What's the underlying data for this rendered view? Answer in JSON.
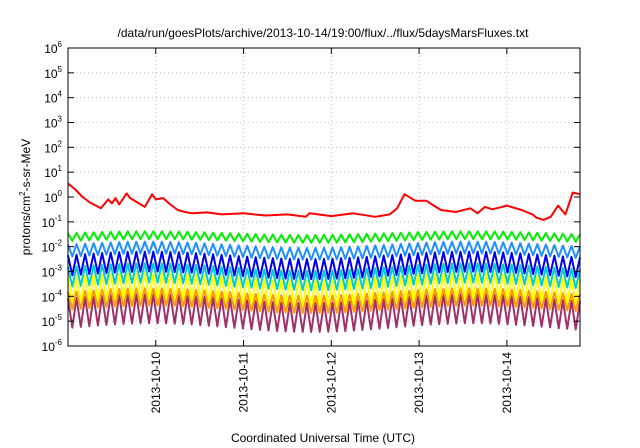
{
  "chart_data": {
    "type": "line",
    "title": "/data/run/goesPlots/archive/2013-10-14/19:00/flux/../flux/5daysMarsFluxes.txt",
    "xlabel": "Coordinated Universal Time (UTC)",
    "ylabel_parts": {
      "before": "protons/cm",
      "sup": "2",
      "after": "-s-sr-MeV"
    },
    "y_scale": "log",
    "ylim": [
      1e-06,
      1000000.0
    ],
    "y_ticks": [
      {
        "value": 1000000.0,
        "base": "10",
        "exp": "6"
      },
      {
        "value": 100000.0,
        "base": "10",
        "exp": "5"
      },
      {
        "value": 10000.0,
        "base": "10",
        "exp": "4"
      },
      {
        "value": 1000.0,
        "base": "10",
        "exp": "3"
      },
      {
        "value": 100.0,
        "base": "10",
        "exp": "2"
      },
      {
        "value": 10.0,
        "base": "10",
        "exp": "1"
      },
      {
        "value": 1.0,
        "base": "10",
        "exp": "0"
      },
      {
        "value": 0.1,
        "base": "10",
        "exp": "-1"
      },
      {
        "value": 0.01,
        "base": "10",
        "exp": "-2"
      },
      {
        "value": 0.001,
        "base": "10",
        "exp": "-3"
      },
      {
        "value": 0.0001,
        "base": "10",
        "exp": "-4"
      },
      {
        "value": 1e-05,
        "base": "10",
        "exp": "-5"
      },
      {
        "value": 1e-06,
        "base": "10",
        "exp": "-6"
      }
    ],
    "xlim": [
      "2013-10-09 00:00",
      "2013-10-14 20:00"
    ],
    "x_ticks": [
      "2013-10-10",
      "2013-10-11",
      "2013-10-12",
      "2013-10-13",
      "2013-10-14"
    ],
    "grid": true,
    "series": [
      {
        "color": "#ff0000",
        "x": [
          "2013-10-09 00:00",
          "2013-10-09 02:00",
          "2013-10-09 04:00",
          "2013-10-09 06:00",
          "2013-10-09 09:00",
          "2013-10-09 11:00",
          "2013-10-09 12:00",
          "2013-10-09 13:00",
          "2013-10-09 14:00",
          "2013-10-09 16:00",
          "2013-10-09 17:00",
          "2013-10-09 19:00",
          "2013-10-09 21:00",
          "2013-10-09 23:00",
          "2013-10-10 00:00",
          "2013-10-10 02:00",
          "2013-10-10 04:00",
          "2013-10-10 06:00",
          "2013-10-10 08:00",
          "2013-10-10 10:00",
          "2013-10-10 14:00",
          "2013-10-10 18:00",
          "2013-10-11 00:00",
          "2013-10-11 06:00",
          "2013-10-11 12:00",
          "2013-10-11 17:00",
          "2013-10-11 18:00",
          "2013-10-12 00:00",
          "2013-10-12 06:00",
          "2013-10-12 12:00",
          "2013-10-12 16:00",
          "2013-10-12 18:00",
          "2013-10-12 20:00",
          "2013-10-12 23:00",
          "2013-10-13 02:00",
          "2013-10-13 04:00",
          "2013-10-13 06:00",
          "2013-10-13 10:00",
          "2013-10-13 14:00",
          "2013-10-13 16:00",
          "2013-10-13 18:00",
          "2013-10-13 20:00",
          "2013-10-14 00:00",
          "2013-10-14 04:00",
          "2013-10-14 07:00",
          "2013-10-14 08:00",
          "2013-10-14 10:00",
          "2013-10-14 12:00",
          "2013-10-14 14:00",
          "2013-10-14 16:00",
          "2013-10-14 18:00",
          "2013-10-14 20:00"
        ],
        "values": [
          3.5,
          2.0,
          1.0,
          0.6,
          0.35,
          0.8,
          0.55,
          0.9,
          0.5,
          1.4,
          0.9,
          0.6,
          0.4,
          1.3,
          0.8,
          0.9,
          0.5,
          0.3,
          0.25,
          0.22,
          0.24,
          0.2,
          0.22,
          0.18,
          0.2,
          0.16,
          0.22,
          0.17,
          0.22,
          0.16,
          0.2,
          0.35,
          1.3,
          0.7,
          0.7,
          0.45,
          0.3,
          0.25,
          0.35,
          0.22,
          0.4,
          0.32,
          0.45,
          0.3,
          0.2,
          0.15,
          0.12,
          0.16,
          0.45,
          0.2,
          1.5,
          1.3
        ]
      },
      {
        "color": "#00ee00",
        "shape": "sawtooth",
        "cycles": 60,
        "peak": 0.035,
        "trough": 0.017,
        "drift": 0.3
      },
      {
        "color": "#1e90ff",
        "shape": "sawtooth",
        "cycles": 60,
        "peak": 0.012,
        "trough": 0.004,
        "drift": 0.5
      },
      {
        "color": "#0000ee",
        "shape": "sawtooth",
        "cycles": 60,
        "peak": 0.0045,
        "trough": 0.0007,
        "drift": 0.6
      },
      {
        "color": "#00cdcd",
        "shape": "sawtooth",
        "cycles": 60,
        "peak": 0.0015,
        "trough": 0.00025,
        "drift": 0.6
      },
      {
        "color": "#ffff00",
        "shape": "sawtooth",
        "cycles": 60,
        "peak": 0.0006,
        "trough": 6e-05,
        "drift": 0.6
      },
      {
        "color": "#ff9900",
        "shape": "sawtooth",
        "cycles": 60,
        "peak": 0.00015,
        "trough": 3e-05,
        "drift": 0.6
      },
      {
        "color": "#a0306a",
        "shape": "sawtooth",
        "cycles": 60,
        "peak": 8e-05,
        "trough": 5.5e-06,
        "drift": 0.7
      }
    ]
  }
}
